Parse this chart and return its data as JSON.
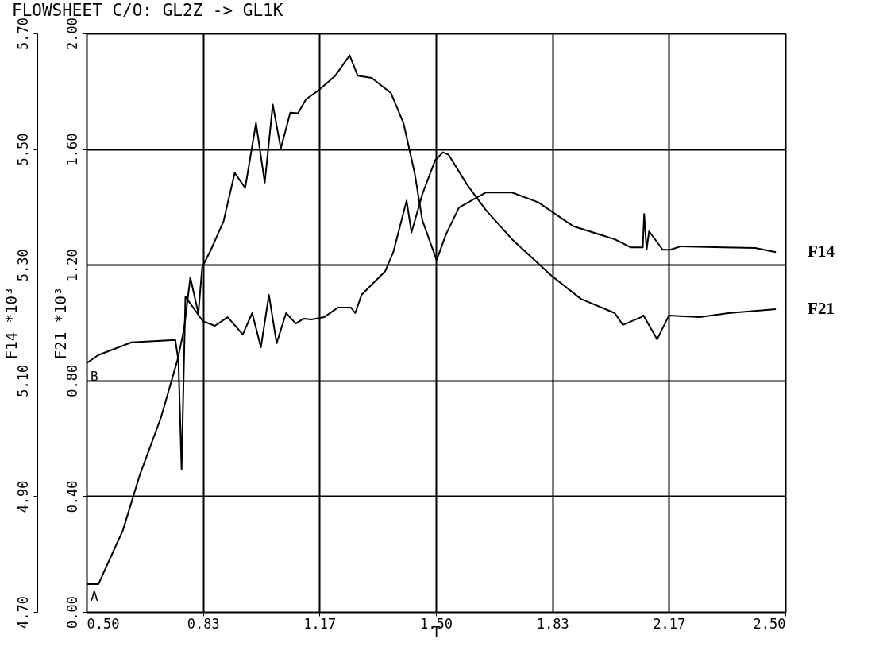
{
  "chart_data": {
    "type": "line",
    "title": "FLOWSHEET C/O: GL2Z -> GL1K",
    "xlabel": "T",
    "ylabel": "F21 *10³",
    "y2label": "F14 *10³",
    "xlim": [
      0.5,
      2.5
    ],
    "xticks": [
      {
        "value": 0.5,
        "label": "0.50"
      },
      {
        "value": 0.8333,
        "label": "0.83"
      },
      {
        "value": 1.1667,
        "label": "1.17"
      },
      {
        "value": 1.5,
        "label": "1.50"
      },
      {
        "value": 1.8333,
        "label": "1.83"
      },
      {
        "value": 2.1667,
        "label": "2.17"
      },
      {
        "value": 2.5,
        "label": "2.50"
      }
    ],
    "ylim": [
      0,
      2
    ],
    "yticks": [
      {
        "value": 0,
        "label": "0.00"
      },
      {
        "value": 0.4,
        "label": "0.40"
      },
      {
        "value": 0.8,
        "label": "0.80"
      },
      {
        "value": 1.2,
        "label": "1.20"
      },
      {
        "value": 1.6,
        "label": "1.60"
      },
      {
        "value": 2,
        "label": "2.00"
      }
    ],
    "y2lim": [
      4.7,
      5.7
    ],
    "y2ticks": [
      {
        "value": 4.7,
        "label": "4.70"
      },
      {
        "value": 4.9,
        "label": "4.90"
      },
      {
        "value": 5.1,
        "label": "5.10"
      },
      {
        "value": 5.3,
        "label": "5.30"
      },
      {
        "value": 5.5,
        "label": "5.50"
      },
      {
        "value": 5.7,
        "label": "5.70"
      }
    ],
    "grid": true,
    "line_style": "solid",
    "annotations": [
      {
        "text": "A",
        "x": 0.5,
        "y": 0.1
      },
      {
        "text": "B",
        "x": 0.5,
        "y": 0.86
      }
    ],
    "series": [
      {
        "name": "F14",
        "color": "#000000",
        "axis": "y2",
        "x": [
          0.5,
          0.534,
          0.582,
          0.604,
          0.652,
          0.713,
          0.761,
          0.779,
          0.797,
          0.82,
          0.831,
          0.856,
          0.892,
          0.924,
          0.954,
          0.985,
          1.01,
          1.033,
          1.056,
          1.083,
          1.105,
          1.128,
          1.167,
          1.212,
          1.253,
          1.276,
          1.316,
          1.371,
          1.407,
          1.439,
          1.461,
          1.502,
          1.529,
          1.566,
          1.643,
          1.718,
          1.793,
          1.892,
          2.012,
          2.058,
          2.092,
          2.096,
          2.103,
          2.11,
          2.149,
          2.171,
          2.201,
          2.323,
          2.414,
          2.473
        ],
        "values": [
          4.748,
          4.748,
          4.812,
          4.841,
          4.936,
          5.036,
          5.137,
          5.189,
          5.278,
          5.216,
          5.296,
          5.326,
          5.375,
          5.459,
          5.433,
          5.545,
          5.442,
          5.577,
          5.501,
          5.563,
          5.562,
          5.586,
          5.603,
          5.627,
          5.662,
          5.627,
          5.623,
          5.597,
          5.545,
          5.459,
          5.377,
          5.308,
          5.353,
          5.399,
          5.425,
          5.425,
          5.408,
          5.367,
          5.344,
          5.33,
          5.33,
          5.388,
          5.326,
          5.358,
          5.326,
          5.326,
          5.332,
          5.33,
          5.329,
          5.322
        ]
      },
      {
        "name": "F21",
        "color": "#000000",
        "x": [
          0.5,
          0.534,
          0.629,
          0.754,
          0.763,
          0.772,
          0.783,
          0.833,
          0.867,
          0.904,
          0.947,
          0.974,
          0.999,
          1.022,
          1.044,
          1.071,
          1.099,
          1.121,
          1.144,
          1.18,
          1.219,
          1.257,
          1.269,
          1.287,
          1.325,
          1.355,
          1.378,
          1.416,
          1.43,
          1.461,
          1.498,
          1.52,
          1.536,
          1.588,
          1.643,
          1.718,
          1.831,
          1.915,
          2.012,
          2.035,
          2.087,
          2.094,
          2.133,
          2.167,
          2.255,
          2.337,
          2.473
        ],
        "values": [
          0.86,
          0.888,
          0.932,
          0.94,
          0.868,
          0.493,
          1.09,
          1.005,
          0.989,
          1.019,
          0.959,
          1.033,
          0.915,
          1.096,
          0.929,
          1.033,
          0.997,
          1.014,
          1.011,
          1.019,
          1.052,
          1.052,
          1.033,
          1.096,
          1.142,
          1.178,
          1.244,
          1.422,
          1.312,
          1.444,
          1.562,
          1.589,
          1.581,
          1.479,
          1.389,
          1.288,
          1.162,
          1.082,
          1.033,
          0.992,
          1.019,
          1.025,
          0.942,
          1.025,
          1.019,
          1.033,
          1.047
        ]
      }
    ]
  }
}
